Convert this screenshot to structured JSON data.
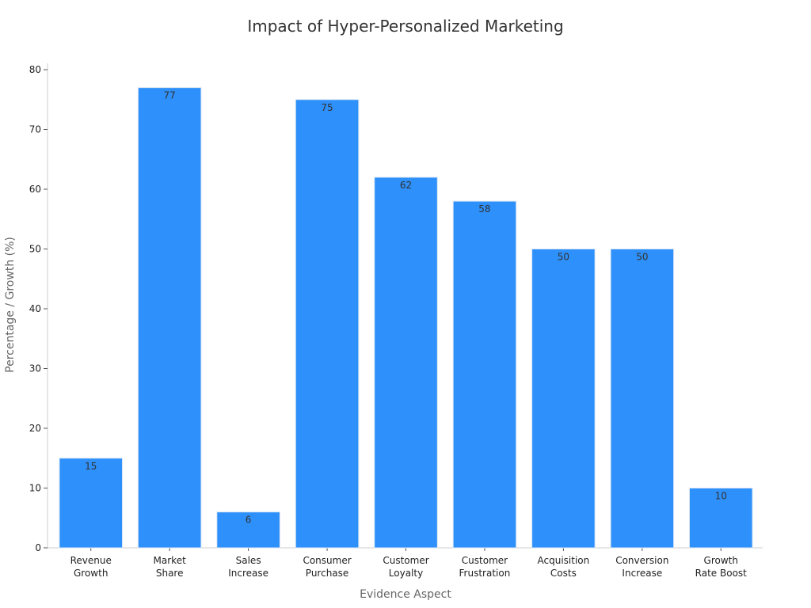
{
  "chart_data": {
    "type": "bar",
    "title": "Impact of Hyper-Personalized Marketing",
    "xlabel": "Evidence Aspect",
    "ylabel": "Percentage / Growth (%)",
    "ylim": [
      0,
      80
    ],
    "yticks": [
      0,
      10,
      20,
      30,
      40,
      50,
      60,
      70,
      80
    ],
    "categories": [
      [
        "Revenue",
        "Growth"
      ],
      [
        "Market",
        "Share"
      ],
      [
        "Sales",
        "Increase"
      ],
      [
        "Consumer",
        "Purchase"
      ],
      [
        "Customer",
        "Loyalty"
      ],
      [
        "Customer",
        "Frustration"
      ],
      [
        "Acquisition",
        "Costs"
      ],
      [
        "Conversion",
        "Increase"
      ],
      [
        "Growth",
        "Rate Boost"
      ]
    ],
    "values": [
      15,
      77,
      6,
      75,
      62,
      58,
      50,
      50,
      10
    ],
    "bar_color": "#2e90fa",
    "grid": false,
    "data_labels": true
  }
}
